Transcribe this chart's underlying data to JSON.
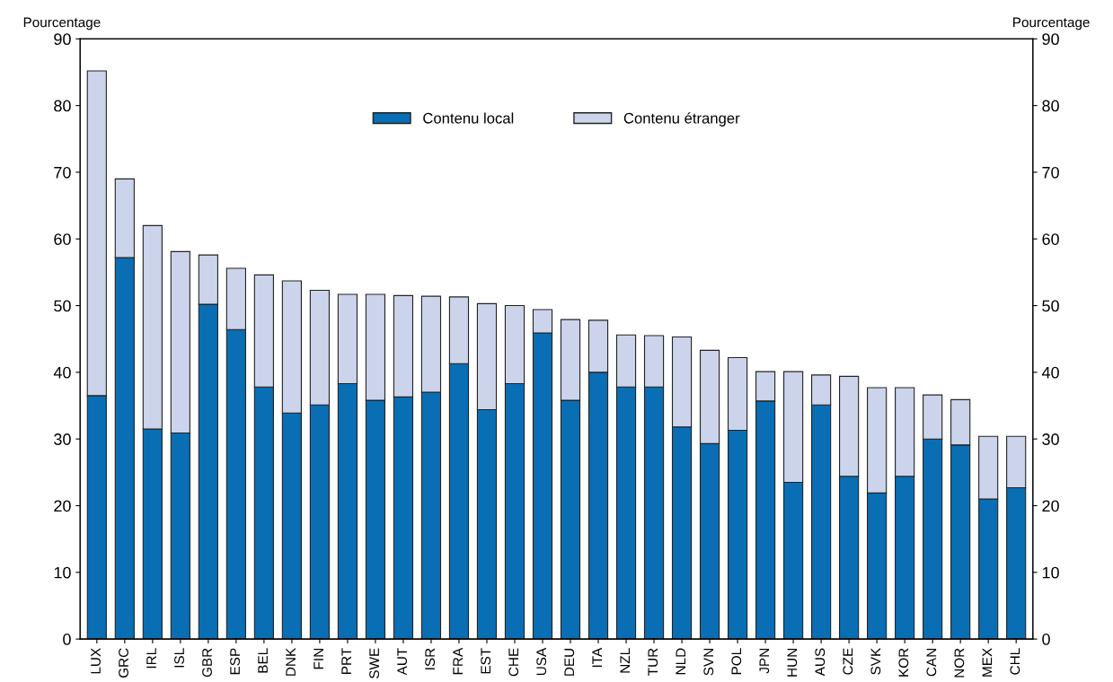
{
  "chart_data": {
    "type": "bar",
    "stacked": true,
    "ylabel": "Pourcentage",
    "y2label": "Pourcentage",
    "categories": [
      "LUX",
      "GRC",
      "IRL",
      "ISL",
      "GBR",
      "ESP",
      "BEL",
      "DNK",
      "FIN",
      "PRT",
      "SWE",
      "AUT",
      "ISR",
      "FRA",
      "EST",
      "CHE",
      "USA",
      "DEU",
      "ITA",
      "NZL",
      "TUR",
      "NLD",
      "SVN",
      "POL",
      "JPN",
      "HUN",
      "AUS",
      "CZE",
      "SVK",
      "KOR",
      "CAN",
      "NOR",
      "MEX",
      "CHL"
    ],
    "series": [
      {
        "name": "Contenu local",
        "color": "#0a6eb4",
        "values": [
          36.5,
          57.2,
          31.5,
          30.9,
          50.2,
          46.4,
          37.8,
          33.9,
          35.1,
          38.3,
          35.8,
          36.3,
          37.0,
          41.3,
          34.4,
          38.3,
          45.9,
          35.8,
          40.0,
          37.8,
          37.8,
          31.8,
          29.3,
          31.3,
          35.7,
          23.5,
          35.1,
          24.4,
          21.9,
          24.4,
          30.0,
          29.1,
          21.0,
          22.7
        ]
      },
      {
        "name": "Contenu étranger",
        "color": "#cbd4ea",
        "values": [
          48.7,
          11.8,
          30.5,
          27.2,
          7.4,
          9.2,
          16.8,
          19.8,
          17.2,
          13.4,
          15.9,
          15.2,
          14.4,
          10.0,
          15.9,
          11.7,
          3.5,
          12.1,
          7.8,
          7.8,
          7.7,
          13.5,
          14.0,
          10.9,
          4.4,
          16.6,
          4.5,
          15.0,
          15.8,
          13.3,
          6.6,
          6.8,
          9.4,
          7.7
        ]
      }
    ],
    "ylim": [
      0,
      90
    ],
    "yticks": [
      0,
      10,
      20,
      30,
      40,
      50,
      60,
      70,
      80,
      90
    ],
    "y2lim": [
      0,
      90
    ],
    "y2ticks": [
      0,
      10,
      20,
      30,
      40,
      50,
      60,
      70,
      80,
      90
    ],
    "legend": "top",
    "grid": false
  }
}
